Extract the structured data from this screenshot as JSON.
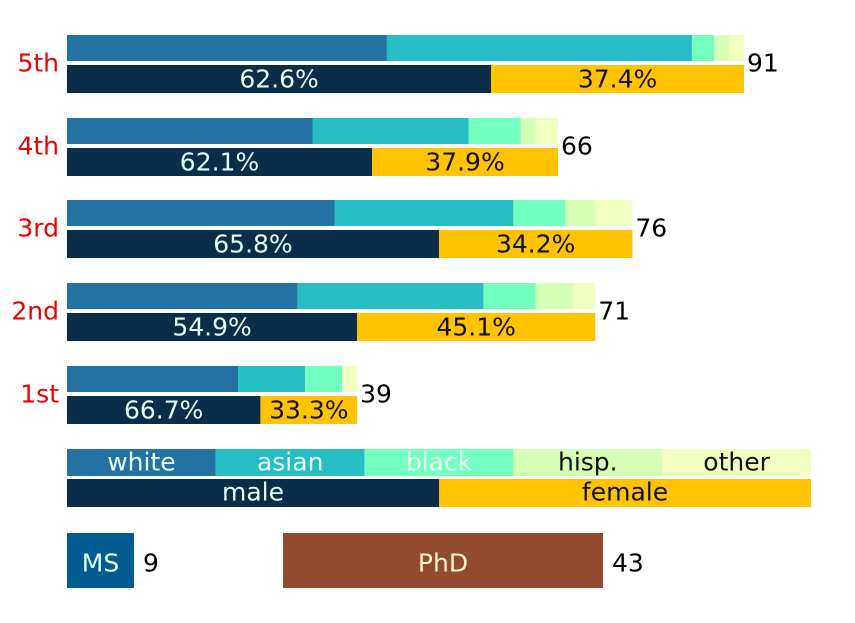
{
  "chart_data": {
    "type": "bar",
    "orientation": "horizontal-stacked",
    "categories": [
      "5th",
      "4th",
      "3rd",
      "2nd",
      "1st"
    ],
    "totals": [
      91,
      66,
      76,
      71,
      39
    ],
    "race_series": [
      {
        "name": "white",
        "color": "#2471a3",
        "label_color": "#e6fff5",
        "values": [
          43,
          33,
          36,
          31,
          23
        ]
      },
      {
        "name": "asian",
        "color": "#26bec4",
        "label_color": "#e6fff5",
        "values": [
          41,
          21,
          24,
          25,
          9
        ]
      },
      {
        "name": "black",
        "color": "#73ffbe",
        "label_color": "#e6fff5",
        "values": [
          3,
          7,
          7,
          7,
          5
        ]
      },
      {
        "name": "hisp.",
        "color": "#d4ffb5",
        "label_color": "#111111",
        "values": [
          2,
          2,
          4,
          5,
          0
        ]
      },
      {
        "name": "other",
        "color": "#f0ffc0",
        "label_color": "#111111",
        "values": [
          2,
          3,
          5,
          3,
          2
        ]
      }
    ],
    "gender_series": [
      {
        "name": "male",
        "color": "#0a2d4a",
        "label_color": "#e6fff5",
        "percent_labels": [
          "62.6%",
          "62.1%",
          "65.8%",
          "54.9%",
          "66.7%"
        ],
        "values": [
          57,
          41,
          50,
          39,
          26
        ]
      },
      {
        "name": "female",
        "color": "#ffc300",
        "label_color": "#111111",
        "percent_labels": [
          "37.4%",
          "37.9%",
          "34.2%",
          "45.1%",
          "33.3%"
        ],
        "values": [
          34,
          25,
          26,
          32,
          13
        ]
      }
    ],
    "degrees": [
      {
        "name": "MS",
        "value": 9,
        "color": "#005d92",
        "label_color": "#e6fff5"
      },
      {
        "name": "PhD",
        "value": 43,
        "color": "#944a2f",
        "label_color": "#fff6cc"
      }
    ],
    "category_label_color": "#ee0000",
    "xlim": [
      0,
      91
    ],
    "grid": false,
    "legend": "bottom"
  }
}
